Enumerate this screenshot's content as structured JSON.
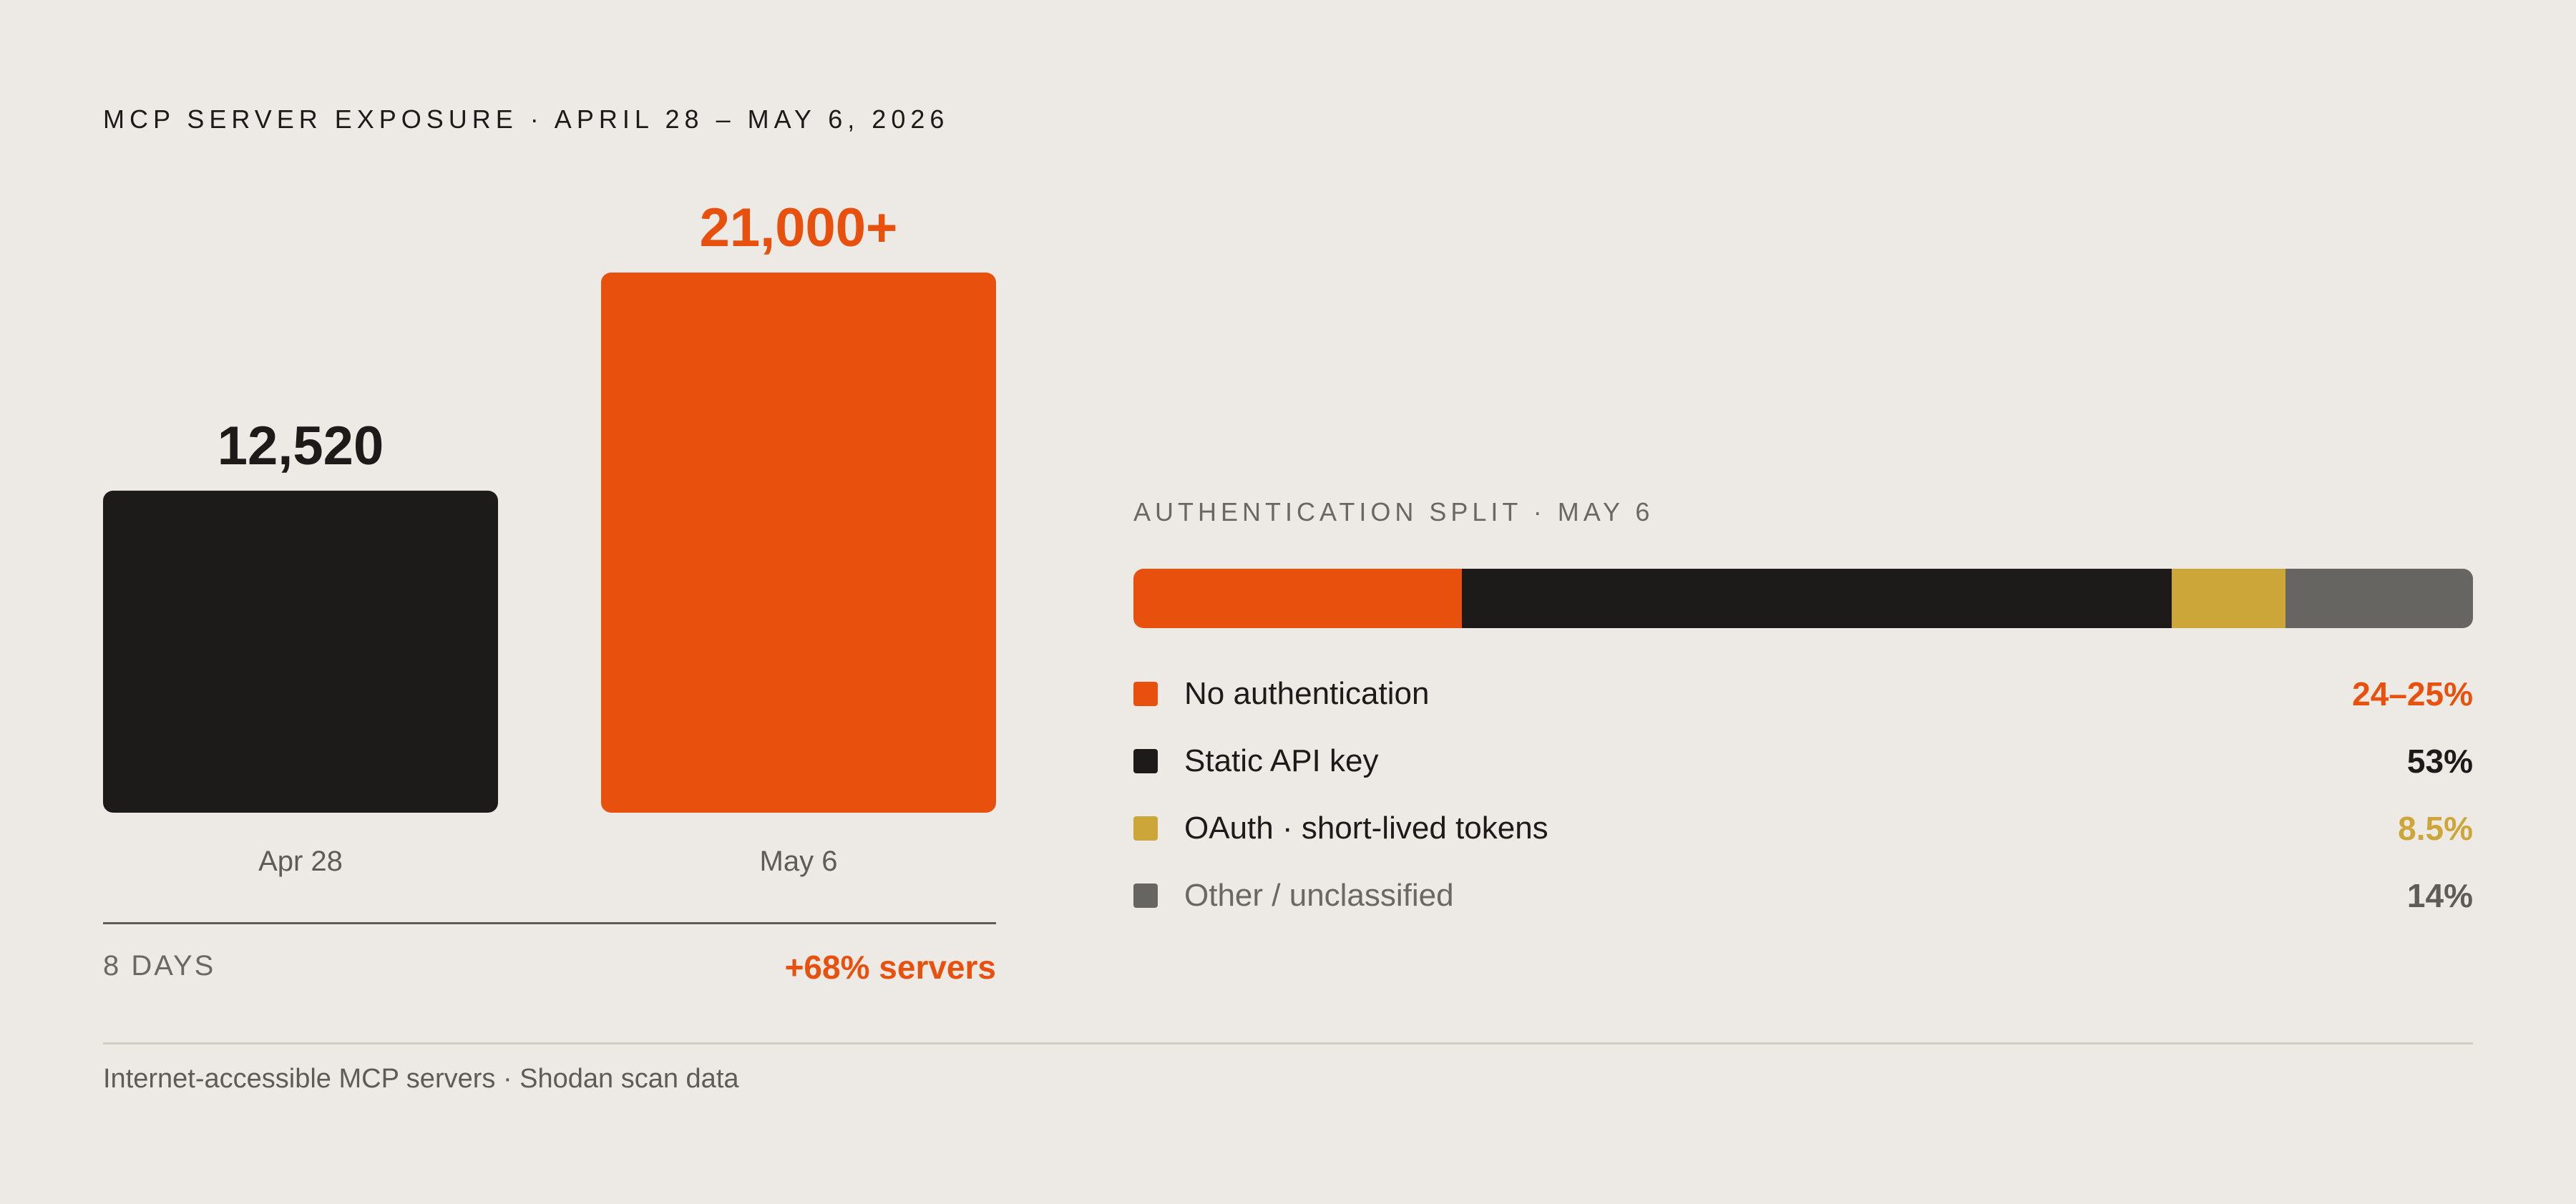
{
  "header": {
    "eyebrow": "MCP SERVER EXPOSURE · APRIL 28 – MAY 6, 2026"
  },
  "chart_data": [
    {
      "type": "bar",
      "categories": [
        "Apr 28",
        "May 6"
      ],
      "values": [
        12520,
        21000
      ],
      "value_labels": [
        "12,520",
        "21,000+"
      ],
      "colors": [
        "#1c1b19",
        "#e8500d"
      ],
      "ylim": [
        0,
        21000
      ],
      "grid": false,
      "span_label": "8 DAYS",
      "change_label": "+68% servers"
    },
    {
      "type": "bar",
      "orientation": "stacked-horizontal",
      "title": "AUTHENTICATION SPLIT · MAY 6",
      "segments": [
        {
          "label": "No authentication",
          "value": 24.5,
          "display": "24–25%",
          "color": "#e8500d",
          "label_color": "#1c1b19"
        },
        {
          "label": "Static API key",
          "value": 53,
          "display": "53%",
          "color": "#1c1b19",
          "label_color": "#1c1b19"
        },
        {
          "label": "OAuth · short-lived tokens",
          "value": 8.5,
          "display": "8.5%",
          "color": "#cda63a",
          "label_color": "#1c1b19"
        },
        {
          "label": "Other / unclassified",
          "value": 14,
          "display": "14%",
          "color": "#666561",
          "label_color": "#6b6863"
        }
      ]
    }
  ],
  "footer": {
    "note": "Internet-accessible MCP servers · Shodan scan data"
  }
}
